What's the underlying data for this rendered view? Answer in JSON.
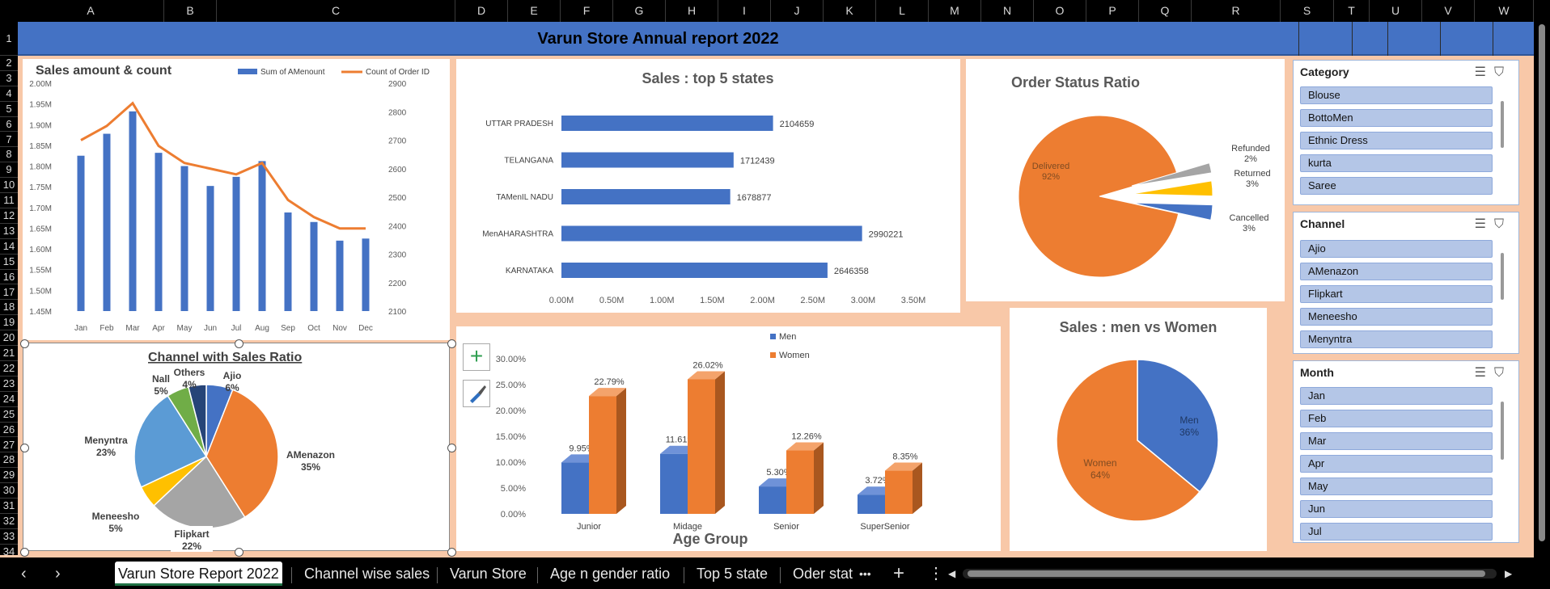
{
  "sheet": {
    "columns": [
      "A",
      "B",
      "C",
      "D",
      "E",
      "F",
      "G",
      "H",
      "I",
      "J",
      "K",
      "L",
      "M",
      "N",
      "O",
      "P",
      "Q",
      "R",
      "S",
      "T",
      "U",
      "V",
      "W"
    ],
    "rows": [
      "1",
      "2",
      "3",
      "4",
      "5",
      "6",
      "7",
      "8",
      "9",
      "10",
      "11",
      "12",
      "13",
      "14",
      "15",
      "16",
      "17",
      "18",
      "19",
      "20",
      "21",
      "22",
      "23",
      "24",
      "25",
      "26",
      "27",
      "28",
      "29",
      "30",
      "31",
      "32",
      "33",
      "34"
    ],
    "title": "Varun Store  Annual report 2022"
  },
  "colors": {
    "blue": "#4472c4",
    "orange": "#ed7d31",
    "gray": "#a5a5a5",
    "yellow": "#ffc000",
    "lightblue": "#5b9bd5",
    "green": "#70ad47",
    "navy": "#264478",
    "background": "#f8c8a8"
  },
  "combo": {
    "title": "Sales amount & count",
    "legend_bar": "Sum of AMenount",
    "legend_line": "Count of Order ID"
  },
  "chart_data": [
    {
      "id": "combo",
      "type": "bar",
      "categories": [
        "Jan",
        "Feb",
        "Mar",
        "Apr",
        "May",
        "Jun",
        "Jul",
        "Aug",
        "Sep",
        "Oct",
        "Nov",
        "Dec"
      ],
      "series": [
        {
          "name": "Sum of AMenount",
          "axis": "left",
          "values": [
            1.825,
            1.878,
            1.932,
            1.832,
            1.8,
            1.752,
            1.774,
            1.812,
            1.688,
            1.665,
            1.62,
            1.625
          ]
        },
        {
          "name": "Count of Order ID",
          "type": "line",
          "axis": "right",
          "values": [
            2700,
            2750,
            2830,
            2680,
            2620,
            2600,
            2580,
            2620,
            2490,
            2430,
            2390,
            2390
          ]
        }
      ],
      "ylim": [
        1.45,
        2.0
      ],
      "ytick_labels": [
        "1.45M",
        "1.50M",
        "1.55M",
        "1.60M",
        "1.65M",
        "1.70M",
        "1.75M",
        "1.80M",
        "1.85M",
        "1.90M",
        "1.95M",
        "2.00M"
      ],
      "y2lim": [
        2100,
        2900
      ],
      "y2tick_labels": [
        "2100",
        "2200",
        "2300",
        "2400",
        "2500",
        "2600",
        "2700",
        "2800",
        "2900"
      ],
      "legend": "top-right"
    },
    {
      "id": "states",
      "type": "bar",
      "orientation": "horizontal",
      "title": "Sales : top 5 states",
      "categories": [
        "UTTAR PRADESH",
        "TELANGANA",
        "TAMenIL NADU",
        "MenAHARASHTRA",
        "KARNATAKA"
      ],
      "values": [
        2104659,
        1712439,
        1678877,
        2990221,
        2646358
      ],
      "value_labels": [
        "2104659",
        "1712439",
        "1678877",
        "2990221",
        "2646358"
      ],
      "xlim": [
        0,
        3500000
      ],
      "xtick_labels": [
        "0.00M",
        "0.50M",
        "1.00M",
        "1.50M",
        "2.00M",
        "2.50M",
        "3.00M",
        "3.50M"
      ]
    },
    {
      "id": "status",
      "type": "pie",
      "title": "Order Status Ratio",
      "slices": [
        {
          "name": "Delivered",
          "value": 92,
          "label": "92%"
        },
        {
          "name": "Refunded",
          "value": 2,
          "label": "2%"
        },
        {
          "name": "Returned",
          "value": 3,
          "label": "3%"
        },
        {
          "name": "Cancelled",
          "value": 3,
          "label": "3%"
        }
      ]
    },
    {
      "id": "channel",
      "type": "pie",
      "title": "Channel with Sales Ratio",
      "slices": [
        {
          "name": "Ajio",
          "value": 6,
          "label": "6%"
        },
        {
          "name": "AMenazon",
          "value": 35,
          "label": "35%"
        },
        {
          "name": "Flipkart",
          "value": 22,
          "label": "22%"
        },
        {
          "name": "Meneesho",
          "value": 5,
          "label": "5%"
        },
        {
          "name": "Menyntra",
          "value": 23,
          "label": "23%"
        },
        {
          "name": "Nall",
          "value": 5,
          "label": "5%"
        },
        {
          "name": "Others",
          "value": 4,
          "label": "4%"
        }
      ]
    },
    {
      "id": "age",
      "type": "bar",
      "xlabel": "Age Group",
      "categories": [
        "Junior",
        "Midage",
        "Senior",
        "SuperSenior"
      ],
      "series": [
        {
          "name": "Men",
          "values": [
            9.95,
            11.61,
            5.3,
            3.72
          ],
          "labels": [
            "9.95%",
            "11.61%",
            "5.30%",
            "3.72%"
          ]
        },
        {
          "name": "Women",
          "values": [
            22.79,
            26.02,
            12.26,
            8.35
          ],
          "labels": [
            "22.79%",
            "26.02%",
            "12.26%",
            "8.35%"
          ]
        }
      ],
      "ylim": [
        0,
        30
      ],
      "ytick_labels": [
        "0.00%",
        "5.00%",
        "10.00%",
        "15.00%",
        "20.00%",
        "25.00%",
        "30.00%"
      ],
      "legend": "top-center"
    },
    {
      "id": "gender",
      "type": "pie",
      "title": "Sales : men vs Women",
      "slices": [
        {
          "name": "Men",
          "value": 36,
          "label": "36%"
        },
        {
          "name": "Women",
          "value": 64,
          "label": "64%"
        }
      ]
    }
  ],
  "slicers": {
    "category": {
      "title": "Category",
      "items": [
        "Blouse",
        "BottoMen",
        "Ethnic Dress",
        "kurta",
        "Saree"
      ]
    },
    "channel": {
      "title": "Channel",
      "items": [
        "Ajio",
        "AMenazon",
        "Flipkart",
        "Meneesho",
        "Menyntra"
      ]
    },
    "month": {
      "title": "Month",
      "items": [
        "Jan",
        "Feb",
        "Mar",
        "Apr",
        "May",
        "Jun",
        "Jul"
      ]
    }
  },
  "tabs": [
    {
      "label": "Varun Store Report 2022",
      "active": true
    },
    {
      "label": "Channel wise sales"
    },
    {
      "label": "Varun Store"
    },
    {
      "label": "Age n gender ratio"
    },
    {
      "label": "Top 5 state"
    },
    {
      "label": "Oder stat"
    }
  ],
  "tab_controls": {
    "prev": "‹",
    "next": "›",
    "more": "•••",
    "add": "+",
    "menu": "⋮",
    "scroll_left": "◀",
    "scroll_right": "▶"
  }
}
